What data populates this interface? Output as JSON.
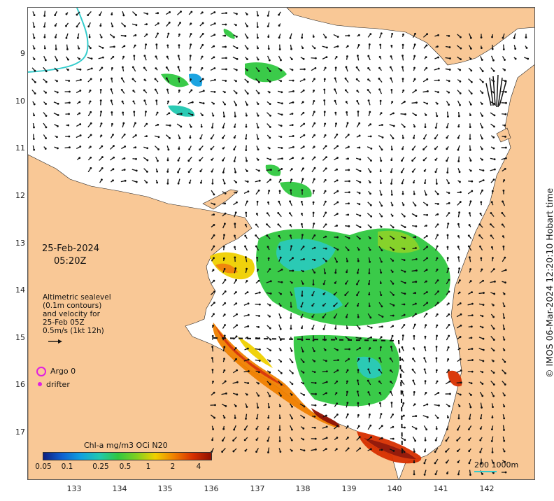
{
  "map": {
    "date": "25-Feb-2024",
    "time": "05:20Z",
    "legend_lines": [
      "Altimetric sealevel",
      "(0.1m contours)",
      "and velocity for",
      "25-Feb 05Z",
      "0.5m/s (1kt 12h)"
    ],
    "argo_label": "Argo 0",
    "drifter_label": "drifter",
    "colorbar_title": "Chl-a mg/m3 OCi N20",
    "colorbar_ticks": [
      "0.05",
      "0.1",
      "0.25",
      "0.5",
      "1",
      "2",
      "4"
    ],
    "scale_label": "200  1000m",
    "credit": "© IMOS 06-Mar-2024 12:20:10 Hobart time",
    "y_axis_labels": [
      "9",
      "10",
      "11",
      "12",
      "13",
      "14",
      "15",
      "16",
      "17"
    ],
    "x_axis_labels": [
      "133",
      "134",
      "135",
      "136",
      "137",
      "138",
      "139",
      "140",
      "141",
      "142"
    ],
    "colors": {
      "land": "#f9c896",
      "water": "#ffffff",
      "argo": "#e020e0",
      "drifter": "#e020e0",
      "scale_bar": "#33cccc",
      "colorbar": [
        "#102080",
        "#1060d0",
        "#10a0e0",
        "#20c8b0",
        "#30c840",
        "#80d020",
        "#f0d000",
        "#f08000",
        "#d83000",
        "#901000"
      ]
    }
  }
}
